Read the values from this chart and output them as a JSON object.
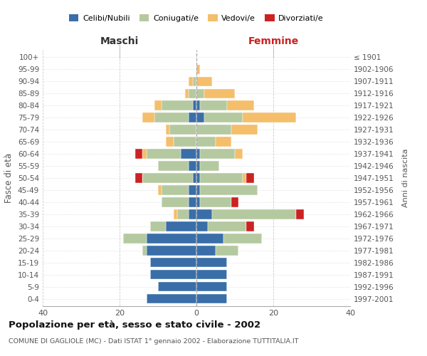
{
  "age_groups": [
    "100+",
    "95-99",
    "90-94",
    "85-89",
    "80-84",
    "75-79",
    "70-74",
    "65-69",
    "60-64",
    "55-59",
    "50-54",
    "45-49",
    "40-44",
    "35-39",
    "30-34",
    "25-29",
    "20-24",
    "15-19",
    "10-14",
    "5-9",
    "0-4"
  ],
  "birth_years": [
    "≤ 1901",
    "1902-1906",
    "1907-1911",
    "1912-1916",
    "1917-1921",
    "1922-1926",
    "1927-1931",
    "1932-1936",
    "1937-1941",
    "1942-1946",
    "1947-1951",
    "1952-1956",
    "1957-1961",
    "1962-1966",
    "1967-1971",
    "1972-1976",
    "1977-1981",
    "1982-1986",
    "1987-1991",
    "1992-1996",
    "1997-2001"
  ],
  "maschi": {
    "celibi": [
      0,
      0,
      0,
      0,
      1,
      2,
      0,
      0,
      4,
      2,
      1,
      2,
      2,
      2,
      8,
      13,
      13,
      12,
      12,
      10,
      13
    ],
    "coniugati": [
      0,
      0,
      1,
      2,
      8,
      9,
      7,
      6,
      9,
      8,
      13,
      7,
      7,
      3,
      4,
      6,
      1,
      0,
      0,
      0,
      0
    ],
    "vedovi": [
      0,
      0,
      1,
      1,
      2,
      3,
      1,
      2,
      1,
      0,
      0,
      1,
      0,
      1,
      0,
      0,
      0,
      0,
      0,
      0,
      0
    ],
    "divorziati": [
      0,
      0,
      0,
      0,
      0,
      0,
      0,
      0,
      2,
      0,
      2,
      0,
      0,
      0,
      0,
      0,
      0,
      0,
      0,
      0,
      0
    ]
  },
  "femmine": {
    "nubili": [
      0,
      0,
      0,
      0,
      1,
      2,
      0,
      0,
      1,
      1,
      1,
      1,
      1,
      4,
      3,
      7,
      5,
      8,
      8,
      8,
      8
    ],
    "coniugate": [
      0,
      0,
      0,
      2,
      7,
      10,
      9,
      5,
      9,
      5,
      11,
      15,
      8,
      22,
      10,
      10,
      6,
      0,
      0,
      0,
      0
    ],
    "vedove": [
      0,
      1,
      4,
      8,
      7,
      14,
      7,
      4,
      2,
      0,
      1,
      0,
      0,
      0,
      0,
      0,
      0,
      0,
      0,
      0,
      0
    ],
    "divorziate": [
      0,
      0,
      0,
      0,
      0,
      0,
      0,
      0,
      0,
      0,
      2,
      0,
      2,
      2,
      2,
      0,
      0,
      0,
      0,
      0,
      0
    ]
  },
  "colors": {
    "celibi": "#3a6ea8",
    "coniugati": "#b5c9a0",
    "vedovi": "#f5be6a",
    "divorziati": "#cc2222"
  },
  "xlim": 40,
  "title": "Popolazione per età, sesso e stato civile - 2002",
  "subtitle": "COMUNE DI GAGLIOLE (MC) - Dati ISTAT 1° gennaio 2002 - Elaborazione TUTTITALIA.IT",
  "xlabel_left": "Maschi",
  "xlabel_right": "Femmine",
  "ylabel": "Fasce di età",
  "ylabel_right": "Anni di nascita"
}
